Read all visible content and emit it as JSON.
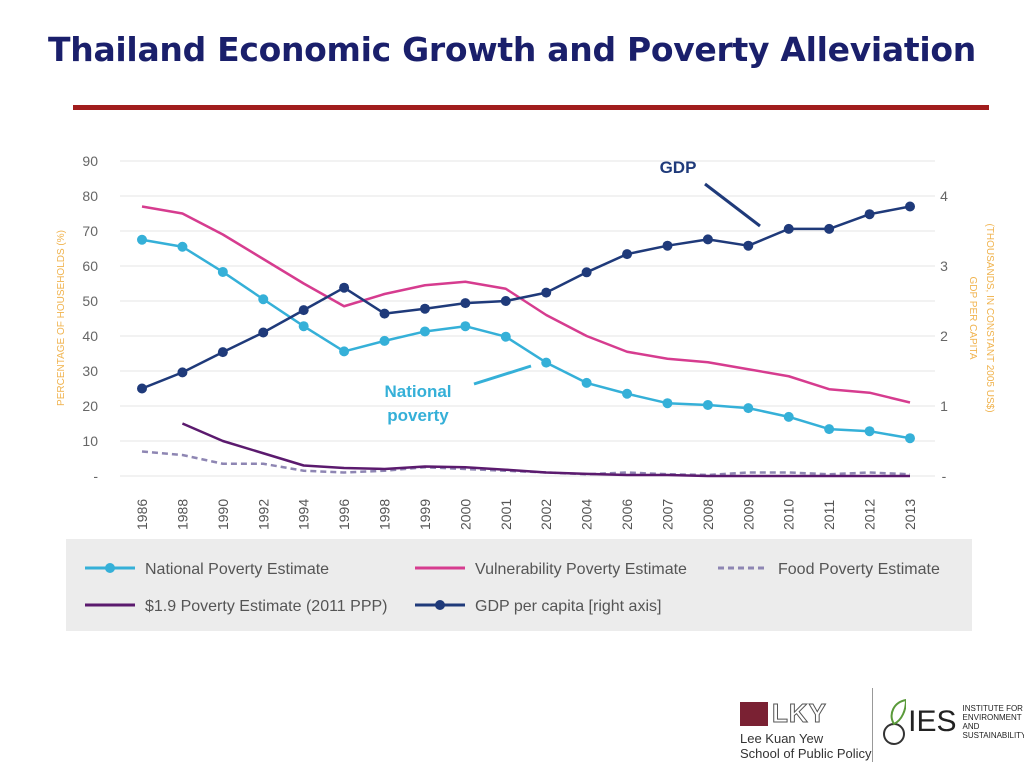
{
  "slide": {
    "title": "Thailand Economic Growth and Poverty Alleviation"
  },
  "colors": {
    "title": "#1a1f6b",
    "rule": "#a11d1d",
    "national": "#35b0d8",
    "vulnerability": "#d63c8f",
    "food": "#8e86b3",
    "ppp": "#5b1a6e",
    "gdp": "#1f3a7a",
    "axis_label": "#f0b34e"
  },
  "chart_data": {
    "type": "line",
    "title": "",
    "categories": [
      "1986",
      "1988",
      "1990",
      "1992",
      "1994",
      "1996",
      "1998",
      "1999",
      "2000",
      "2001",
      "2002",
      "2004",
      "2006",
      "2007",
      "2008",
      "2009",
      "2010",
      "2011",
      "2012",
      "2013"
    ],
    "ylabel": "PERCENTAGE OF HOUSEHOLDS (%)",
    "ylim": [
      0,
      90
    ],
    "yticks": [
      "-",
      "10",
      "20",
      "30",
      "40",
      "50",
      "60",
      "70",
      "80",
      "90"
    ],
    "y2label_line1": "GDP PER CAPITA",
    "y2label_line2": "(THOUSANDS, IN CONSTANT 2005 US$)",
    "y2lim": [
      0,
      4.5
    ],
    "y2ticks": [
      "-",
      "1",
      "2",
      "3",
      "4"
    ],
    "grid": true,
    "series": [
      {
        "name": "National Poverty Estimate",
        "axis": "left",
        "style": "line-dot",
        "values": [
          67.5,
          65.5,
          58.3,
          50.5,
          42.8,
          35.6,
          38.6,
          41.3,
          42.8,
          39.8,
          32.4,
          26.6,
          23.5,
          20.8,
          20.3,
          19.4,
          16.9,
          13.4,
          12.8,
          10.8
        ]
      },
      {
        "name": "Vulnerability Poverty Estimate",
        "axis": "left",
        "style": "line",
        "values": [
          77,
          75,
          69,
          62,
          55,
          48.5,
          52,
          54.5,
          55.5,
          53.5,
          46,
          40,
          35.5,
          33.5,
          32.5,
          30.5,
          28.5,
          24.8,
          23.8,
          21
        ]
      },
      {
        "name": "Food Poverty Estimate",
        "axis": "left",
        "style": "dashed",
        "values": [
          7,
          6,
          3.5,
          3.5,
          1.5,
          1,
          1.5,
          2.5,
          2,
          1.5,
          1,
          0.5,
          1,
          0.5,
          0.3,
          1,
          1,
          0.5,
          1,
          0.5
        ]
      },
      {
        "name": "$1.9 Poverty Estimate (2011 PPP)",
        "axis": "left",
        "style": "line",
        "values": [
          null,
          15,
          10,
          6.5,
          3,
          2.3,
          2,
          2.7,
          2.5,
          1.8,
          1,
          0.6,
          0.3,
          0.3,
          0,
          0,
          0,
          0,
          0,
          0
        ]
      },
      {
        "name": "GDP per capita [right axis]",
        "axis": "right",
        "style": "line-dot",
        "values": [
          1.25,
          1.48,
          1.77,
          2.05,
          2.37,
          2.69,
          2.32,
          2.39,
          2.47,
          2.5,
          2.62,
          2.91,
          3.17,
          3.29,
          3.38,
          3.29,
          3.53,
          3.53,
          3.74,
          3.85
        ]
      }
    ],
    "annotations": [
      {
        "text": "GDP"
      },
      {
        "text_line1": "National",
        "text_line2": "poverty"
      }
    ]
  }
}
